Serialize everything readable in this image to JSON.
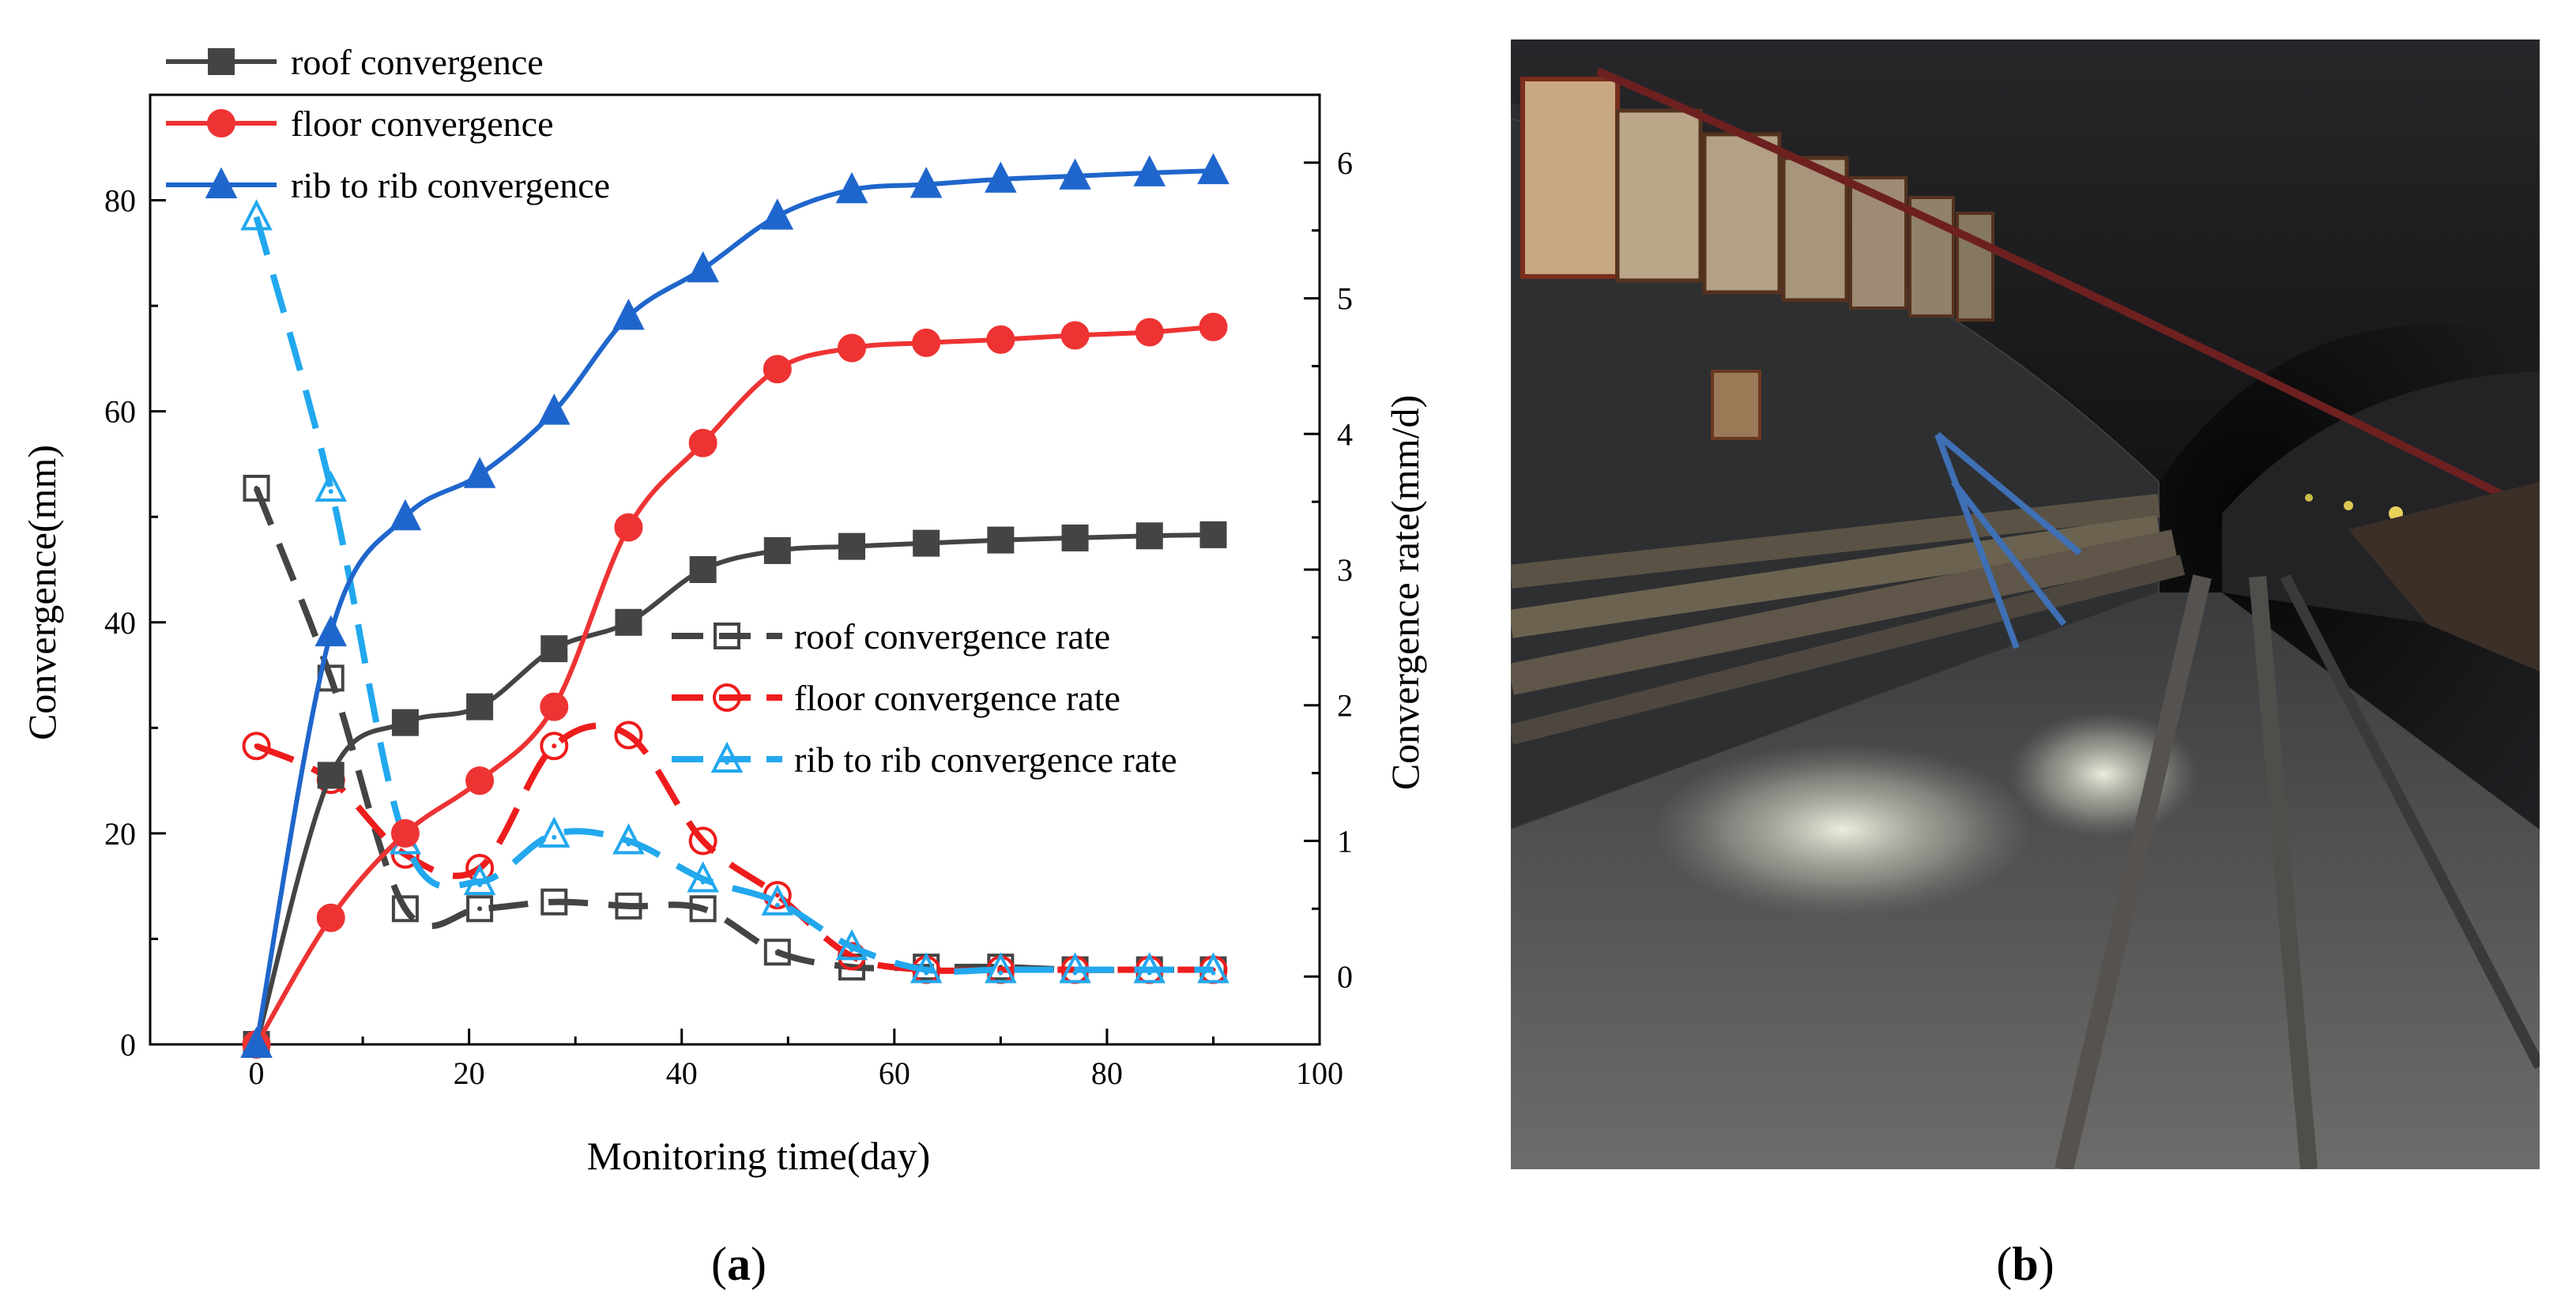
{
  "chart_data": {
    "type": "line",
    "xlabel": "Monitoring time(day)",
    "ylabel": "Convergence(mm)",
    "y2label": "Convergence rate(mm/d)",
    "xlim": [
      -10,
      100
    ],
    "ylim": [
      0,
      90
    ],
    "y2lim": [
      -0.5,
      6.5
    ],
    "xticks": [
      "0",
      "20",
      "40",
      "60",
      "80",
      "100"
    ],
    "yticks": [
      "0",
      "20",
      "40",
      "60",
      "80"
    ],
    "y2ticks": [
      "0",
      "1",
      "2",
      "3",
      "4",
      "5",
      "6"
    ],
    "x": [
      0,
      7,
      14,
      21,
      28,
      35,
      42,
      49,
      56,
      63,
      70,
      77,
      84,
      90
    ],
    "series": [
      {
        "name": "roof convergence",
        "axis": "left",
        "style": "solid",
        "marker": "square",
        "color": "#444444",
        "values": [
          0,
          25.5,
          30.5,
          32,
          37.5,
          40,
          45,
          46.8,
          47.2,
          47.5,
          47.8,
          48.0,
          48.2,
          48.3
        ]
      },
      {
        "name": "floor convergence",
        "axis": "left",
        "style": "solid",
        "marker": "circle",
        "color": "#ee3333",
        "values": [
          0,
          12,
          20,
          25,
          32,
          49,
          57,
          64,
          66,
          66.5,
          66.8,
          67.2,
          67.5,
          68
        ]
      },
      {
        "name": "rib to rib convergence",
        "axis": "left",
        "style": "solid",
        "marker": "triangle",
        "color": "#1f66cc",
        "values": [
          0,
          39,
          50,
          54,
          60,
          69,
          73.5,
          78.5,
          81,
          81.5,
          82,
          82.3,
          82.6,
          82.8
        ]
      },
      {
        "name": "roof convergence rate",
        "axis": "right",
        "style": "dashed",
        "marker": "square-open",
        "color": "#444444",
        "values": [
          3.6,
          2.2,
          0.5,
          0.5,
          0.55,
          0.52,
          0.5,
          0.18,
          0.07,
          0.07,
          0.07,
          0.05,
          0.05,
          0.05
        ]
      },
      {
        "name": "floor convergence rate",
        "axis": "right",
        "style": "dashed",
        "marker": "circle-open",
        "color": "#ee1c1c",
        "values": [
          1.7,
          1.45,
          0.9,
          0.8,
          1.7,
          1.78,
          1.0,
          0.6,
          0.15,
          0.05,
          0.05,
          0.05,
          0.05,
          0.05
        ]
      },
      {
        "name": "rib to rib convergence rate",
        "axis": "right",
        "style": "dashed",
        "marker": "triangle-open",
        "color": "#22a8ee",
        "values": [
          5.6,
          3.6,
          1.0,
          0.7,
          1.05,
          1.0,
          0.72,
          0.55,
          0.22,
          0.05,
          0.05,
          0.05,
          0.05,
          0.05
        ]
      }
    ]
  },
  "panels": {
    "a_paren_left": "(",
    "a_letter": "a",
    "a_paren_right": ")",
    "b_paren_left": "(",
    "b_letter": "b",
    "b_paren_right": ")"
  }
}
